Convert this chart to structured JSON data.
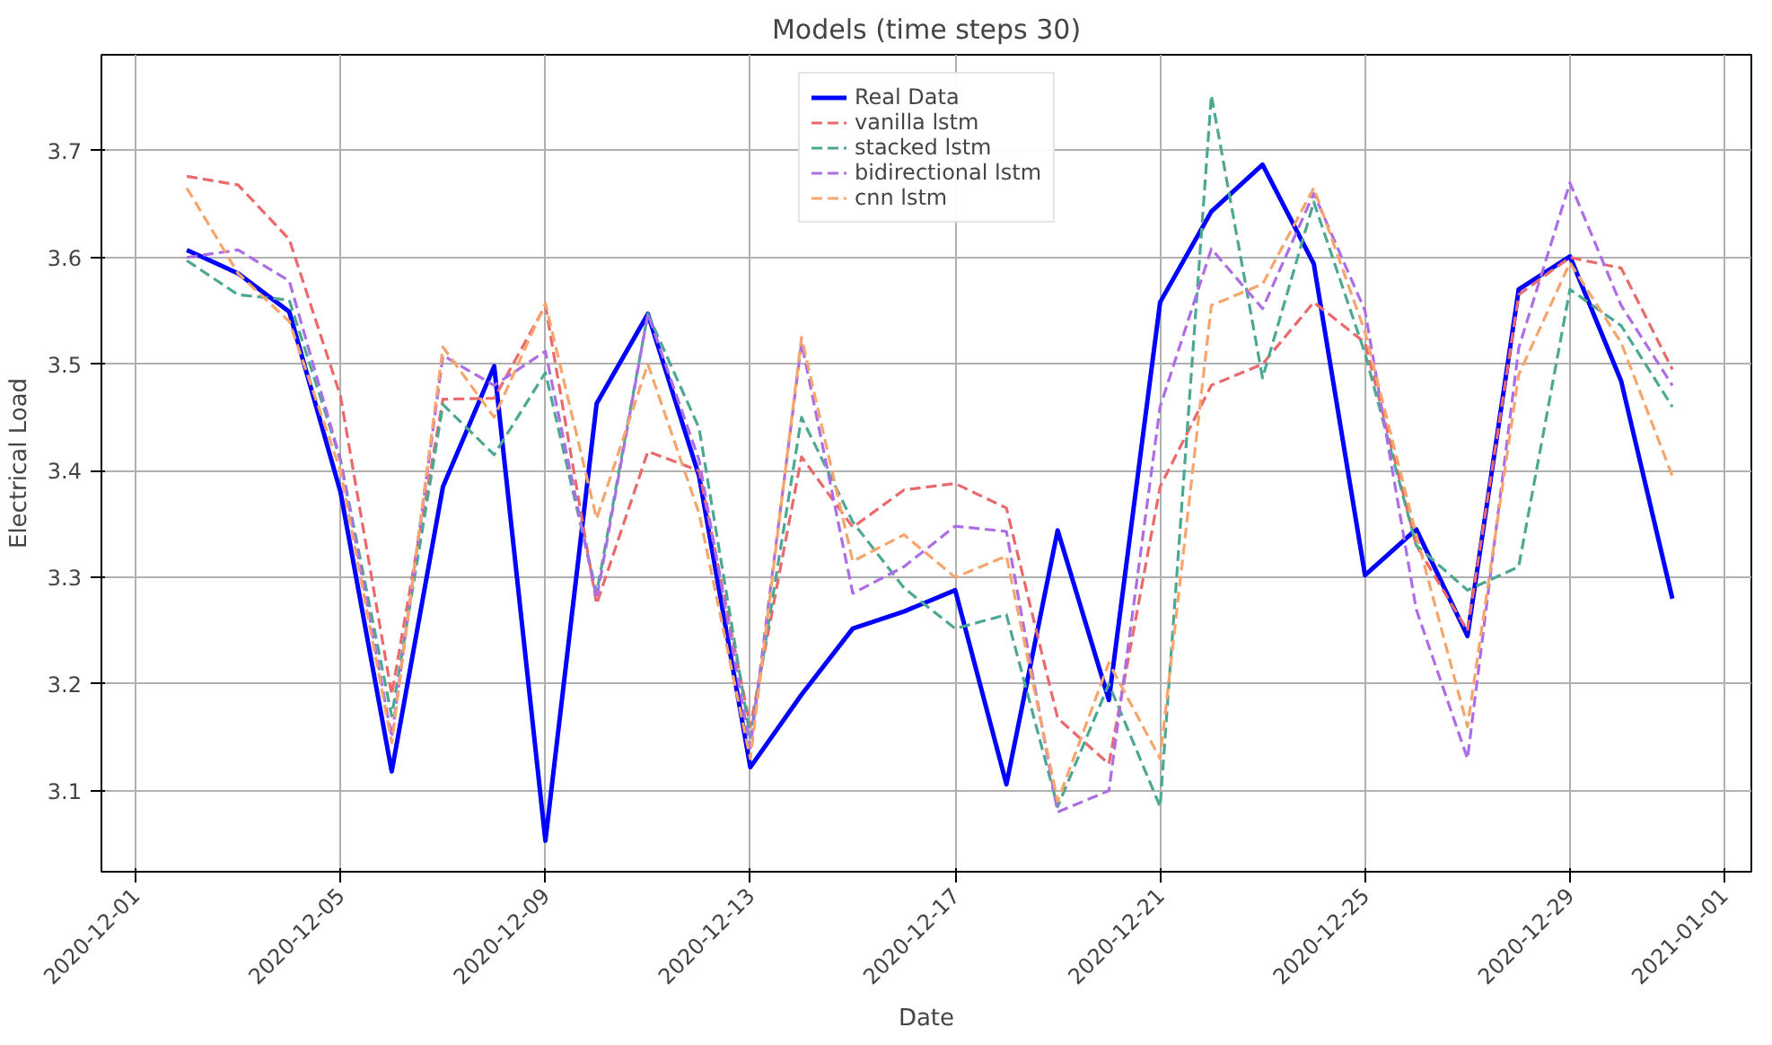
{
  "chart_data": {
    "type": "line",
    "title": "Models (time steps 30)",
    "xlabel": "Date",
    "ylabel": "Electrical Load",
    "x": [
      "2020-12-02",
      "2020-12-03",
      "2020-12-04",
      "2020-12-05",
      "2020-12-06",
      "2020-12-07",
      "2020-12-08",
      "2020-12-09",
      "2020-12-10",
      "2020-12-11",
      "2020-12-12",
      "2020-12-13",
      "2020-12-14",
      "2020-12-15",
      "2020-12-16",
      "2020-12-17",
      "2020-12-18",
      "2020-12-19",
      "2020-12-20",
      "2020-12-21",
      "2020-12-22",
      "2020-12-23",
      "2020-12-24",
      "2020-12-25",
      "2020-12-26",
      "2020-12-27",
      "2020-12-28",
      "2020-12-29",
      "2020-12-30",
      "2020-12-31"
    ],
    "series": [
      {
        "name": "Real Data",
        "color": "#0000ff",
        "line_style": "solid",
        "values": [
          3.607,
          3.585,
          3.549,
          3.38,
          3.118,
          3.385,
          3.498,
          3.053,
          3.463,
          3.547,
          3.395,
          3.122,
          3.19,
          3.252,
          3.268,
          3.288,
          3.106,
          3.344,
          3.185,
          3.558,
          3.643,
          3.687,
          3.594,
          3.302,
          3.345,
          3.245,
          3.57,
          3.601,
          3.484,
          3.28
        ]
      },
      {
        "name": "vanilla lstm",
        "color": "#ea6a6c",
        "line_style": "dashed",
        "values": [
          3.676,
          3.668,
          3.617,
          3.47,
          3.19,
          3.467,
          3.468,
          3.555,
          3.275,
          3.418,
          3.4,
          3.16,
          3.413,
          3.347,
          3.382,
          3.388,
          3.365,
          3.168,
          3.125,
          3.385,
          3.48,
          3.5,
          3.558,
          3.52,
          3.33,
          3.25,
          3.565,
          3.6,
          3.59,
          3.495
        ]
      },
      {
        "name": "stacked lstm",
        "color": "#4ca893",
        "line_style": "dashed",
        "values": [
          3.597,
          3.565,
          3.56,
          3.41,
          3.17,
          3.462,
          3.415,
          3.492,
          3.285,
          3.547,
          3.44,
          3.15,
          3.45,
          3.352,
          3.29,
          3.252,
          3.265,
          3.085,
          3.2,
          3.085,
          3.752,
          3.487,
          3.652,
          3.51,
          3.33,
          3.288,
          3.31,
          3.57,
          3.536,
          3.46
        ]
      },
      {
        "name": "bidirectional lstm",
        "color": "#ad6de6",
        "line_style": "dashed",
        "values": [
          3.6,
          3.607,
          3.578,
          3.41,
          3.15,
          3.508,
          3.48,
          3.512,
          3.28,
          3.547,
          3.41,
          3.14,
          3.52,
          3.285,
          3.31,
          3.348,
          3.343,
          3.08,
          3.1,
          3.46,
          3.608,
          3.552,
          3.66,
          3.55,
          3.27,
          3.13,
          3.515,
          3.67,
          3.555,
          3.48
        ]
      },
      {
        "name": "cnn lstm",
        "color": "#f6a66c",
        "line_style": "dashed",
        "values": [
          3.665,
          3.585,
          3.54,
          3.4,
          3.145,
          3.516,
          3.45,
          3.557,
          3.355,
          3.5,
          3.36,
          3.13,
          3.525,
          3.315,
          3.34,
          3.3,
          3.32,
          3.09,
          3.22,
          3.13,
          3.555,
          3.575,
          3.665,
          3.53,
          3.34,
          3.16,
          3.49,
          3.595,
          3.52,
          3.395
        ]
      }
    ],
    "xlim": [
      "2020-11-30T08:00",
      "2021-01-01T13:00"
    ],
    "xticks": [
      "2020-12-01",
      "2020-12-05",
      "2020-12-09",
      "2020-12-13",
      "2020-12-17",
      "2020-12-21",
      "2020-12-25",
      "2020-12-29",
      "2021-01-01"
    ],
    "ylim": [
      3.024,
      3.79
    ],
    "yticks": [
      3.1,
      3.2,
      3.3,
      3.4,
      3.5,
      3.6,
      3.7
    ],
    "grid": true,
    "legend": "top",
    "marker": "none"
  }
}
